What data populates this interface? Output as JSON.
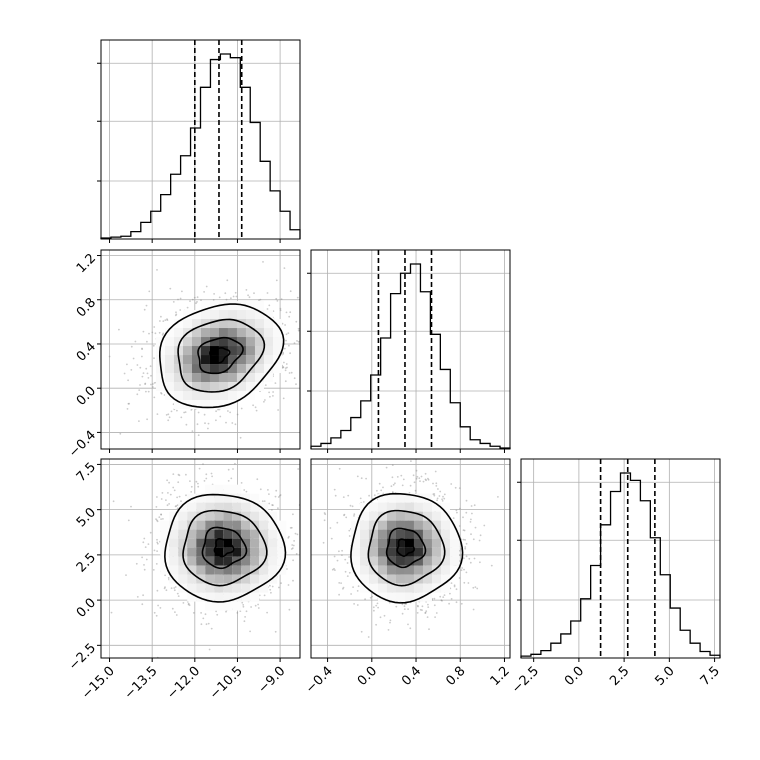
{
  "chart_data": {
    "type": "corner",
    "title": "",
    "parameters": [
      {
        "index": 0,
        "range": [
          -15.3,
          -8.3
        ],
        "x_ticks": [
          -15.0,
          -13.5,
          -12.0,
          -10.5,
          -9.0
        ],
        "x_tick_labels": [
          "−15.0",
          "−13.5",
          "−12.0",
          "−10.5",
          "−9.0"
        ],
        "quantiles": [
          -12.0,
          -11.15,
          -10.35
        ],
        "histogram": {
          "bin_edges": [
            -15.3,
            -14.95,
            -14.6,
            -14.25,
            -13.9,
            -13.55,
            -13.2,
            -12.85,
            -12.5,
            -12.15,
            -11.8,
            -11.45,
            -11.1,
            -10.75,
            -10.4,
            -10.05,
            -9.7,
            -9.35,
            -9.0,
            -8.65,
            -8.3
          ],
          "counts": [
            0.005,
            0.01,
            0.015,
            0.04,
            0.09,
            0.15,
            0.24,
            0.35,
            0.45,
            0.6,
            0.82,
            0.97,
            1.0,
            0.98,
            0.82,
            0.63,
            0.42,
            0.26,
            0.15,
            0.05
          ]
        }
      },
      {
        "index": 1,
        "range": [
          -0.55,
          1.25
        ],
        "x_ticks": [
          -0.4,
          0.0,
          0.4,
          0.8,
          1.2
        ],
        "x_tick_labels": [
          "−0.4",
          "0.0",
          "0.4",
          "0.8",
          "1.2"
        ],
        "y_ticks": [
          -0.4,
          0.0,
          0.4,
          0.8,
          1.2
        ],
        "y_tick_labels": [
          "−0.4",
          "0.0",
          "0.4",
          "0.8",
          "1.2"
        ],
        "quantiles": [
          0.06,
          0.3,
          0.54
        ],
        "histogram": {
          "bin_edges": [
            -0.55,
            -0.46,
            -0.37,
            -0.28,
            -0.19,
            -0.1,
            -0.01,
            0.08,
            0.17,
            0.26,
            0.35,
            0.44,
            0.53,
            0.62,
            0.71,
            0.8,
            0.89,
            0.98,
            1.07,
            1.16,
            1.25
          ],
          "counts": [
            0.015,
            0.03,
            0.06,
            0.1,
            0.17,
            0.26,
            0.4,
            0.6,
            0.84,
            0.95,
            1.0,
            0.85,
            0.62,
            0.43,
            0.25,
            0.12,
            0.05,
            0.03,
            0.015,
            0.005
          ]
        }
      },
      {
        "index": 2,
        "range": [
          -3.2,
          7.8
        ],
        "x_ticks": [
          -2.5,
          0.0,
          2.5,
          5.0,
          7.5
        ],
        "x_tick_labels": [
          "−2.5",
          "0.0",
          "2.5",
          "5.0",
          "7.5"
        ],
        "y_ticks": [
          -2.5,
          0.0,
          2.5,
          5.0,
          7.5
        ],
        "y_tick_labels": [
          "−2.5",
          "0.0",
          "2.5",
          "5.0",
          "7.5"
        ],
        "quantiles": [
          1.2,
          2.7,
          4.2
        ],
        "histogram": {
          "bin_edges": [
            -3.2,
            -2.65,
            -2.1,
            -1.55,
            -1.0,
            -0.45,
            0.1,
            0.65,
            1.2,
            1.75,
            2.3,
            2.85,
            3.4,
            3.95,
            4.5,
            5.05,
            5.6,
            6.15,
            6.7,
            7.25,
            7.8
          ],
          "counts": [
            0.01,
            0.02,
            0.04,
            0.08,
            0.13,
            0.2,
            0.32,
            0.5,
            0.72,
            0.9,
            1.0,
            0.96,
            0.85,
            0.65,
            0.45,
            0.27,
            0.15,
            0.08,
            0.035,
            0.015
          ]
        }
      }
    ],
    "pairs": [
      {
        "x_param": 0,
        "y_param": 1,
        "center": [
          -11.15,
          0.3
        ],
        "contours_1sigma": [
          0.8,
          0.15
        ],
        "contours_2sigma": [
          1.55,
          0.31
        ],
        "contours_3sigma": [
          2.25,
          0.44
        ],
        "rotation_deg": -25
      },
      {
        "x_param": 0,
        "y_param": 2,
        "center": [
          -11.0,
          2.9
        ],
        "contours_1sigma": [
          0.75,
          1.1
        ],
        "contours_2sigma": [
          1.45,
          2.05
        ],
        "contours_3sigma": [
          2.1,
          2.95
        ],
        "rotation_deg": 0
      },
      {
        "x_param": 1,
        "y_param": 2,
        "center": [
          0.3,
          2.9
        ],
        "contours_1sigma": [
          0.17,
          1.05
        ],
        "contours_2sigma": [
          0.34,
          2.05
        ],
        "contours_3sigma": [
          0.5,
          3.0
        ],
        "rotation_deg": 0
      }
    ],
    "grid": true
  },
  "colors": {
    "line": "#000000",
    "grid": "#b0b0b0",
    "scatter": "#8c8c8c"
  }
}
